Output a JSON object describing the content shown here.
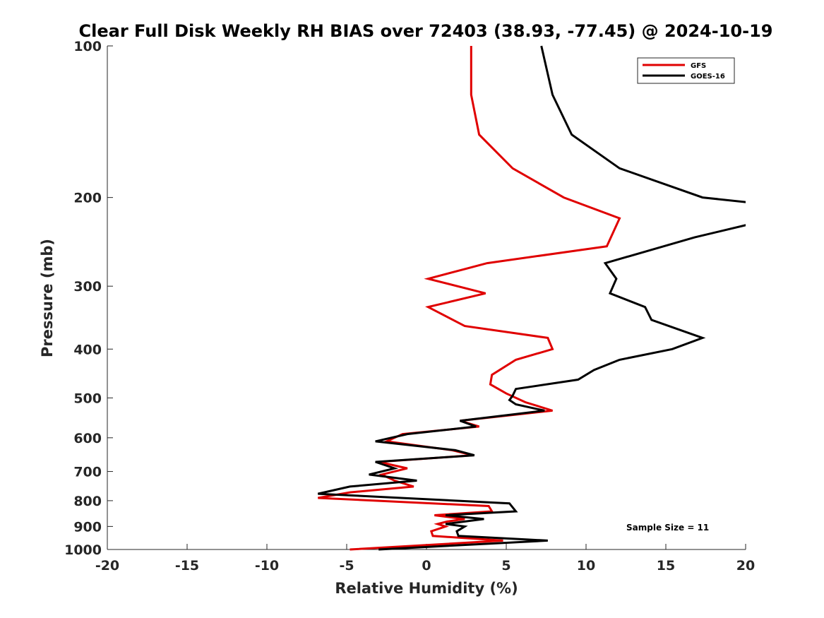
{
  "chart_data": {
    "type": "line",
    "title": "Clear Full Disk Weekly RH BIAS over 72403 (38.93, -77.45) @ 2024-10-19",
    "xlabel": "Relative Humidity (%)",
    "ylabel": "Pressure (mb)",
    "xlim": [
      -20,
      20
    ],
    "ylim": [
      100,
      1000
    ],
    "yscale": "log",
    "y_reversed": true,
    "xticks": [
      -20,
      -15,
      -10,
      -5,
      0,
      5,
      10,
      15,
      20
    ],
    "xtick_labels": [
      "-20",
      "-15",
      "-10",
      "-5",
      "0",
      "5",
      "10",
      "15",
      "20"
    ],
    "yticks": [
      100,
      200,
      300,
      400,
      500,
      600,
      700,
      800,
      900,
      1000
    ],
    "ytick_labels": [
      "100",
      "200",
      "300",
      "400",
      "500",
      "600",
      "700",
      "800",
      "900",
      "1000"
    ],
    "grid": false,
    "legend_position": "top-right",
    "annotation": "Sample Size = 11",
    "series": [
      {
        "name": "GFS",
        "color": "#e00000",
        "points": [
          [
            2.8,
            100
          ],
          [
            2.8,
            125
          ],
          [
            3.3,
            150
          ],
          [
            5.4,
            175
          ],
          [
            8.6,
            200
          ],
          [
            12.1,
            220
          ],
          [
            11.3,
            250
          ],
          [
            3.8,
            270
          ],
          [
            0.1,
            290
          ],
          [
            3.7,
            310
          ],
          [
            0.1,
            330
          ],
          [
            2.4,
            360
          ],
          [
            7.6,
            380
          ],
          [
            7.9,
            400
          ],
          [
            5.6,
            420
          ],
          [
            4.1,
            450
          ],
          [
            4.0,
            470
          ],
          [
            5.0,
            490
          ],
          [
            6.2,
            510
          ],
          [
            7.9,
            530
          ],
          [
            2.1,
            555
          ],
          [
            3.3,
            570
          ],
          [
            -1.5,
            590
          ],
          [
            -2.5,
            610
          ],
          [
            1.6,
            635
          ],
          [
            2.9,
            650
          ],
          [
            -3.0,
            670
          ],
          [
            -1.2,
            690
          ],
          [
            -2.8,
            710
          ],
          [
            -2.0,
            730
          ],
          [
            -0.8,
            750
          ],
          [
            -4.8,
            770
          ],
          [
            -6.8,
            790
          ],
          [
            3.9,
            820
          ],
          [
            4.1,
            840
          ],
          [
            0.5,
            855
          ],
          [
            2.4,
            870
          ],
          [
            1.3,
            880
          ],
          [
            0.7,
            890
          ],
          [
            1.2,
            900
          ],
          [
            0.3,
            920
          ],
          [
            0.4,
            940
          ],
          [
            4.8,
            960
          ],
          [
            -4.8,
            1000
          ]
        ]
      },
      {
        "name": "GOES-16",
        "color": "#000000",
        "points": [
          [
            7.2,
            100
          ],
          [
            7.9,
            125
          ],
          [
            9.1,
            150
          ],
          [
            12.1,
            175
          ],
          [
            17.3,
            200
          ],
          [
            20.5,
            205
          ],
          [
            20.5,
            225
          ],
          [
            16.8,
            240
          ],
          [
            11.2,
            270
          ],
          [
            11.9,
            290
          ],
          [
            11.5,
            310
          ],
          [
            13.7,
            330
          ],
          [
            14.1,
            350
          ],
          [
            17.3,
            380
          ],
          [
            15.4,
            400
          ],
          [
            12.1,
            420
          ],
          [
            10.5,
            440
          ],
          [
            9.5,
            460
          ],
          [
            5.6,
            480
          ],
          [
            5.4,
            495
          ],
          [
            5.2,
            505
          ],
          [
            5.6,
            515
          ],
          [
            7.4,
            530
          ],
          [
            2.1,
            555
          ],
          [
            3.1,
            570
          ],
          [
            -1.2,
            590
          ],
          [
            -3.2,
            610
          ],
          [
            1.8,
            635
          ],
          [
            3.0,
            650
          ],
          [
            -3.2,
            670
          ],
          [
            -2.0,
            690
          ],
          [
            -3.6,
            710
          ],
          [
            -0.6,
            730
          ],
          [
            -4.8,
            750
          ],
          [
            -6.8,
            775
          ],
          [
            5.2,
            810
          ],
          [
            5.6,
            840
          ],
          [
            1.2,
            855
          ],
          [
            3.6,
            870
          ],
          [
            1.2,
            890
          ],
          [
            2.4,
            900
          ],
          [
            1.9,
            920
          ],
          [
            2.0,
            940
          ],
          [
            7.6,
            960
          ],
          [
            -3.0,
            1000
          ]
        ]
      }
    ]
  }
}
